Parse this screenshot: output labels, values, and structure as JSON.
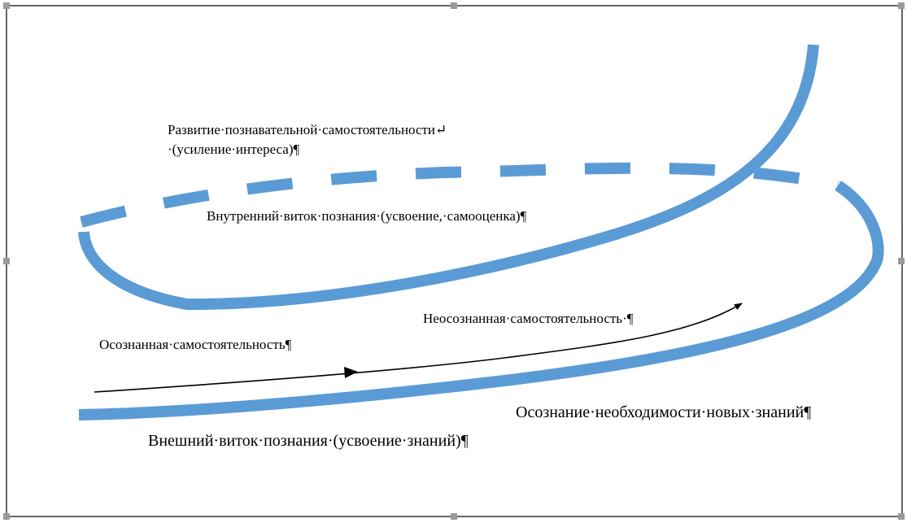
{
  "diagram": {
    "labels": {
      "development_line1": "Развитие·познавательной·самостоятельности↵",
      "development_line2": "·(усиление·интереса)¶",
      "inner_turn": "Внутренний·виток·познания·(усвоение,·самооценка)¶",
      "unconscious": "Неосознанная·самостоятельность·¶",
      "conscious": "Осознанная·самостоятельность¶",
      "awareness": "Осознание·необходимости·новых·знаний¶",
      "outer_turn": "Внешний·виток·познания·(усвоение·знаний)¶"
    },
    "colors": {
      "spiral": "#5b9bd5",
      "arrow": "#000000",
      "frame": "#333333",
      "handle": "#888888"
    }
  }
}
